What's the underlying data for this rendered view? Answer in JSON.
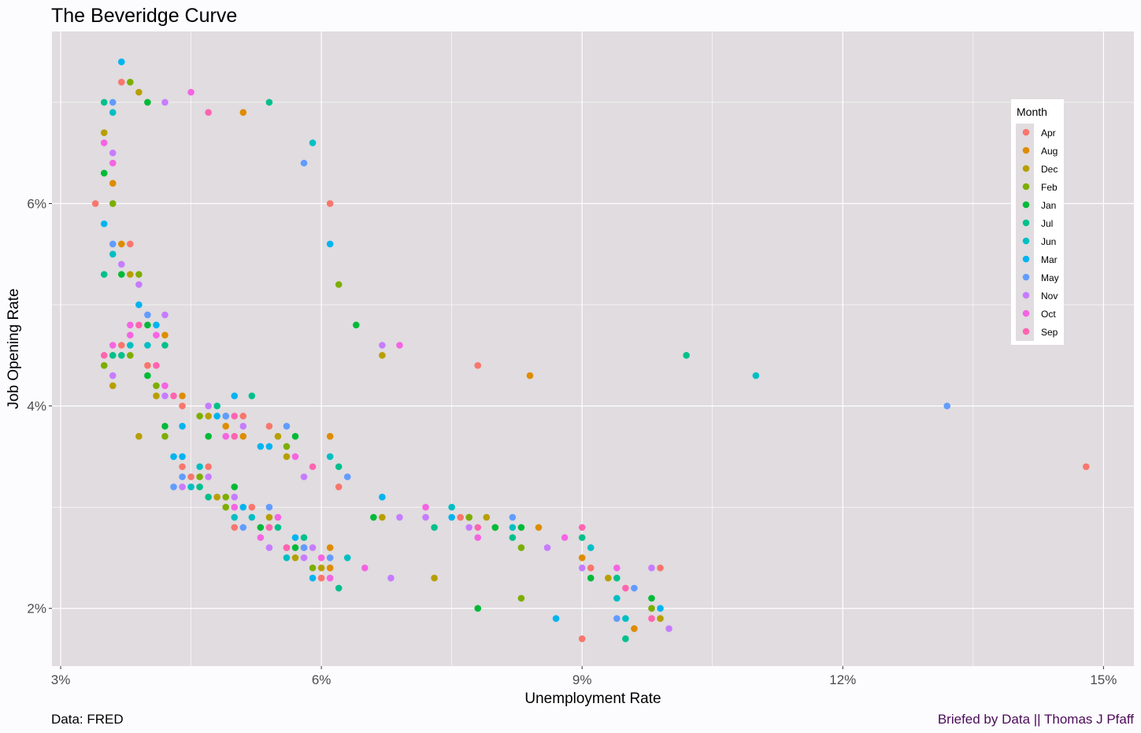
{
  "chart_data": {
    "type": "scatter",
    "title": "The Beveridge Curve",
    "xlabel": "Unemployment Rate",
    "ylabel": "Job Opening Rate",
    "xlim": [
      2.9,
      15.35
    ],
    "ylim": [
      1.43,
      7.7
    ],
    "x_ticks": [
      3,
      6,
      9,
      12,
      15
    ],
    "x_tick_labels": [
      "3%",
      "6%",
      "9%",
      "12%",
      "15%"
    ],
    "y_ticks": [
      2,
      4,
      6
    ],
    "y_tick_labels": [
      "2%",
      "4%",
      "6%"
    ],
    "grid": true,
    "legend": {
      "title": "Month",
      "position": "right"
    },
    "caption_left": "Data: FRED",
    "caption_right": "Briefed by Data || Thomas J Pfaff",
    "series": [
      {
        "name": "Apr",
        "color": "#F8766D",
        "points": [
          [
            3.4,
            6.0
          ],
          [
            3.7,
            7.2
          ],
          [
            3.8,
            5.6
          ],
          [
            3.6,
            4.5
          ],
          [
            3.7,
            4.6
          ],
          [
            4.0,
            4.4
          ],
          [
            4.4,
            4.0
          ],
          [
            4.4,
            3.4
          ],
          [
            4.5,
            3.3
          ],
          [
            4.7,
            3.4
          ],
          [
            5.0,
            2.8
          ],
          [
            5.1,
            3.9
          ],
          [
            5.2,
            3.0
          ],
          [
            5.4,
            3.8
          ],
          [
            5.6,
            2.6
          ],
          [
            5.8,
            2.6
          ],
          [
            6.0,
            2.3
          ],
          [
            6.1,
            6.0
          ],
          [
            6.2,
            3.2
          ],
          [
            7.6,
            2.9
          ],
          [
            7.8,
            4.4
          ],
          [
            8.0,
            2.8
          ],
          [
            9.0,
            1.7
          ],
          [
            9.1,
            2.4
          ],
          [
            9.9,
            2.4
          ],
          [
            14.8,
            3.4
          ]
        ]
      },
      {
        "name": "Aug",
        "color": "#DE8C00",
        "points": [
          [
            3.6,
            6.2
          ],
          [
            3.7,
            5.6
          ],
          [
            4.2,
            4.7
          ],
          [
            4.4,
            4.1
          ],
          [
            4.9,
            3.8
          ],
          [
            5.1,
            3.7
          ],
          [
            5.1,
            6.9
          ],
          [
            6.1,
            3.7
          ],
          [
            6.1,
            2.6
          ],
          [
            6.1,
            2.4
          ],
          [
            8.4,
            4.3
          ],
          [
            8.5,
            2.8
          ],
          [
            9.0,
            2.5
          ],
          [
            9.6,
            1.8
          ]
        ]
      },
      {
        "name": "Dec",
        "color": "#B79F00",
        "points": [
          [
            3.5,
            6.7
          ],
          [
            3.6,
            4.2
          ],
          [
            3.8,
            5.3
          ],
          [
            3.9,
            7.1
          ],
          [
            3.9,
            3.7
          ],
          [
            4.1,
            4.1
          ],
          [
            4.7,
            3.9
          ],
          [
            4.8,
            3.1
          ],
          [
            5.4,
            2.9
          ],
          [
            5.5,
            3.7
          ],
          [
            5.6,
            3.5
          ],
          [
            5.7,
            2.5
          ],
          [
            6.0,
            2.4
          ],
          [
            6.7,
            4.5
          ],
          [
            6.7,
            2.9
          ],
          [
            7.3,
            2.3
          ],
          [
            7.7,
            2.9
          ],
          [
            7.9,
            2.9
          ],
          [
            9.3,
            2.3
          ],
          [
            9.9,
            1.9
          ]
        ]
      },
      {
        "name": "Feb",
        "color": "#7CAE00",
        "points": [
          [
            3.5,
            4.4
          ],
          [
            3.6,
            6.0
          ],
          [
            3.8,
            7.2
          ],
          [
            3.8,
            4.5
          ],
          [
            3.9,
            5.3
          ],
          [
            4.1,
            4.2
          ],
          [
            4.2,
            3.7
          ],
          [
            4.6,
            3.9
          ],
          [
            4.6,
            3.3
          ],
          [
            4.9,
            3.9
          ],
          [
            4.9,
            3.1
          ],
          [
            4.9,
            3.0
          ],
          [
            5.4,
            2.8
          ],
          [
            5.6,
            3.6
          ],
          [
            5.9,
            2.4
          ],
          [
            6.2,
            5.2
          ],
          [
            7.7,
            2.9
          ],
          [
            8.3,
            2.6
          ],
          [
            8.3,
            2.1
          ],
          [
            9.8,
            2.0
          ]
        ]
      },
      {
        "name": "Jan",
        "color": "#00BA38",
        "points": [
          [
            3.5,
            6.3
          ],
          [
            3.7,
            5.3
          ],
          [
            4.0,
            7.0
          ],
          [
            4.0,
            4.8
          ],
          [
            4.0,
            4.3
          ],
          [
            4.2,
            3.8
          ],
          [
            4.7,
            3.7
          ],
          [
            5.0,
            3.2
          ],
          [
            5.3,
            2.8
          ],
          [
            5.7,
            3.7
          ],
          [
            5.7,
            2.6
          ],
          [
            6.4,
            4.8
          ],
          [
            6.6,
            2.9
          ],
          [
            7.8,
            2.0
          ],
          [
            8.0,
            2.8
          ],
          [
            8.3,
            2.8
          ],
          [
            9.1,
            2.3
          ],
          [
            9.8,
            2.1
          ]
        ]
      },
      {
        "name": "Jul",
        "color": "#00C08B",
        "points": [
          [
            3.5,
            7.0
          ],
          [
            3.5,
            5.3
          ],
          [
            3.6,
            4.5
          ],
          [
            3.7,
            4.5
          ],
          [
            4.2,
            4.6
          ],
          [
            4.6,
            3.2
          ],
          [
            4.8,
            4.0
          ],
          [
            4.7,
            3.1
          ],
          [
            5.2,
            4.1
          ],
          [
            5.4,
            7.0
          ],
          [
            5.5,
            2.8
          ],
          [
            5.8,
            2.7
          ],
          [
            6.2,
            3.4
          ],
          [
            6.2,
            2.2
          ],
          [
            7.3,
            2.8
          ],
          [
            8.2,
            2.7
          ],
          [
            9.0,
            2.7
          ],
          [
            9.4,
            2.3
          ],
          [
            9.5,
            1.7
          ],
          [
            10.2,
            4.5
          ]
        ]
      },
      {
        "name": "Jun",
        "color": "#00BFC4",
        "points": [
          [
            3.6,
            6.9
          ],
          [
            3.6,
            5.5
          ],
          [
            3.8,
            4.6
          ],
          [
            4.0,
            4.6
          ],
          [
            4.6,
            3.4
          ],
          [
            4.5,
            3.2
          ],
          [
            5.0,
            2.9
          ],
          [
            5.2,
            2.9
          ],
          [
            5.6,
            2.5
          ],
          [
            5.9,
            6.6
          ],
          [
            6.1,
            3.5
          ],
          [
            6.3,
            2.5
          ],
          [
            7.5,
            3.0
          ],
          [
            8.2,
            2.8
          ],
          [
            9.1,
            2.6
          ],
          [
            9.4,
            2.1
          ],
          [
            9.5,
            1.9
          ],
          [
            11.0,
            4.3
          ]
        ]
      },
      {
        "name": "Mar",
        "color": "#00B4F0",
        "points": [
          [
            3.5,
            5.8
          ],
          [
            3.7,
            7.4
          ],
          [
            3.9,
            5.0
          ],
          [
            4.1,
            4.8
          ],
          [
            4.4,
            3.8
          ],
          [
            4.3,
            3.5
          ],
          [
            4.4,
            3.5
          ],
          [
            4.8,
            3.9
          ],
          [
            5.0,
            4.1
          ],
          [
            5.1,
            3.0
          ],
          [
            5.3,
            3.6
          ],
          [
            5.4,
            3.6
          ],
          [
            5.7,
            2.7
          ],
          [
            5.9,
            2.3
          ],
          [
            6.1,
            5.6
          ],
          [
            6.7,
            3.1
          ],
          [
            7.5,
            2.9
          ],
          [
            8.7,
            1.9
          ],
          [
            9.9,
            2.0
          ]
        ]
      },
      {
        "name": "May",
        "color": "#619CFF",
        "points": [
          [
            3.6,
            7.0
          ],
          [
            3.6,
            5.6
          ],
          [
            4.0,
            4.9
          ],
          [
            4.3,
            3.2
          ],
          [
            4.4,
            3.3
          ],
          [
            4.9,
            3.9
          ],
          [
            5.1,
            2.8
          ],
          [
            5.4,
            3.0
          ],
          [
            5.6,
            3.8
          ],
          [
            5.8,
            6.4
          ],
          [
            5.8,
            2.6
          ],
          [
            6.1,
            2.5
          ],
          [
            6.3,
            3.3
          ],
          [
            8.2,
            2.9
          ],
          [
            9.4,
            1.9
          ],
          [
            9.6,
            2.2
          ],
          [
            13.2,
            4.0
          ]
        ]
      },
      {
        "name": "Nov",
        "color": "#C77CFF",
        "points": [
          [
            3.6,
            6.5
          ],
          [
            3.6,
            4.3
          ],
          [
            3.7,
            5.4
          ],
          [
            3.9,
            5.2
          ],
          [
            4.2,
            7.0
          ],
          [
            4.2,
            4.9
          ],
          [
            4.2,
            4.1
          ],
          [
            4.4,
            3.2
          ],
          [
            4.7,
            4.0
          ],
          [
            4.7,
            3.3
          ],
          [
            5.0,
            3.1
          ],
          [
            5.1,
            3.8
          ],
          [
            5.4,
            2.6
          ],
          [
            5.8,
            3.3
          ],
          [
            5.8,
            2.5
          ],
          [
            5.9,
            2.6
          ],
          [
            6.7,
            4.6
          ],
          [
            6.8,
            2.3
          ],
          [
            6.9,
            2.9
          ],
          [
            7.2,
            2.9
          ],
          [
            7.7,
            2.8
          ],
          [
            8.6,
            2.6
          ],
          [
            9.0,
            2.4
          ],
          [
            9.8,
            2.4
          ],
          [
            10.0,
            1.8
          ]
        ]
      },
      {
        "name": "Oct",
        "color": "#F564E3",
        "points": [
          [
            3.5,
            6.6
          ],
          [
            3.6,
            6.4
          ],
          [
            3.6,
            4.6
          ],
          [
            3.8,
            4.8
          ],
          [
            3.8,
            4.7
          ],
          [
            4.1,
            4.7
          ],
          [
            4.2,
            4.2
          ],
          [
            4.5,
            7.1
          ],
          [
            4.9,
            3.7
          ],
          [
            5.0,
            3.0
          ],
          [
            5.3,
            2.7
          ],
          [
            5.5,
            2.9
          ],
          [
            5.7,
            3.5
          ],
          [
            6.0,
            2.5
          ],
          [
            6.1,
            2.3
          ],
          [
            6.5,
            2.4
          ],
          [
            6.9,
            4.6
          ],
          [
            7.2,
            3.0
          ],
          [
            7.8,
            2.7
          ],
          [
            8.8,
            2.7
          ],
          [
            9.4,
            2.4
          ]
        ]
      },
      {
        "name": "Sep",
        "color": "#FF64B0",
        "points": [
          [
            3.5,
            4.5
          ],
          [
            3.9,
            4.8
          ],
          [
            4.1,
            4.4
          ],
          [
            4.3,
            4.1
          ],
          [
            4.7,
            6.9
          ],
          [
            5.0,
            3.9
          ],
          [
            5.0,
            3.7
          ],
          [
            5.4,
            2.8
          ],
          [
            5.6,
            2.6
          ],
          [
            5.9,
            3.4
          ],
          [
            7.8,
            2.8
          ],
          [
            9.0,
            2.8
          ],
          [
            9.5,
            2.2
          ],
          [
            9.8,
            1.9
          ]
        ]
      }
    ]
  }
}
